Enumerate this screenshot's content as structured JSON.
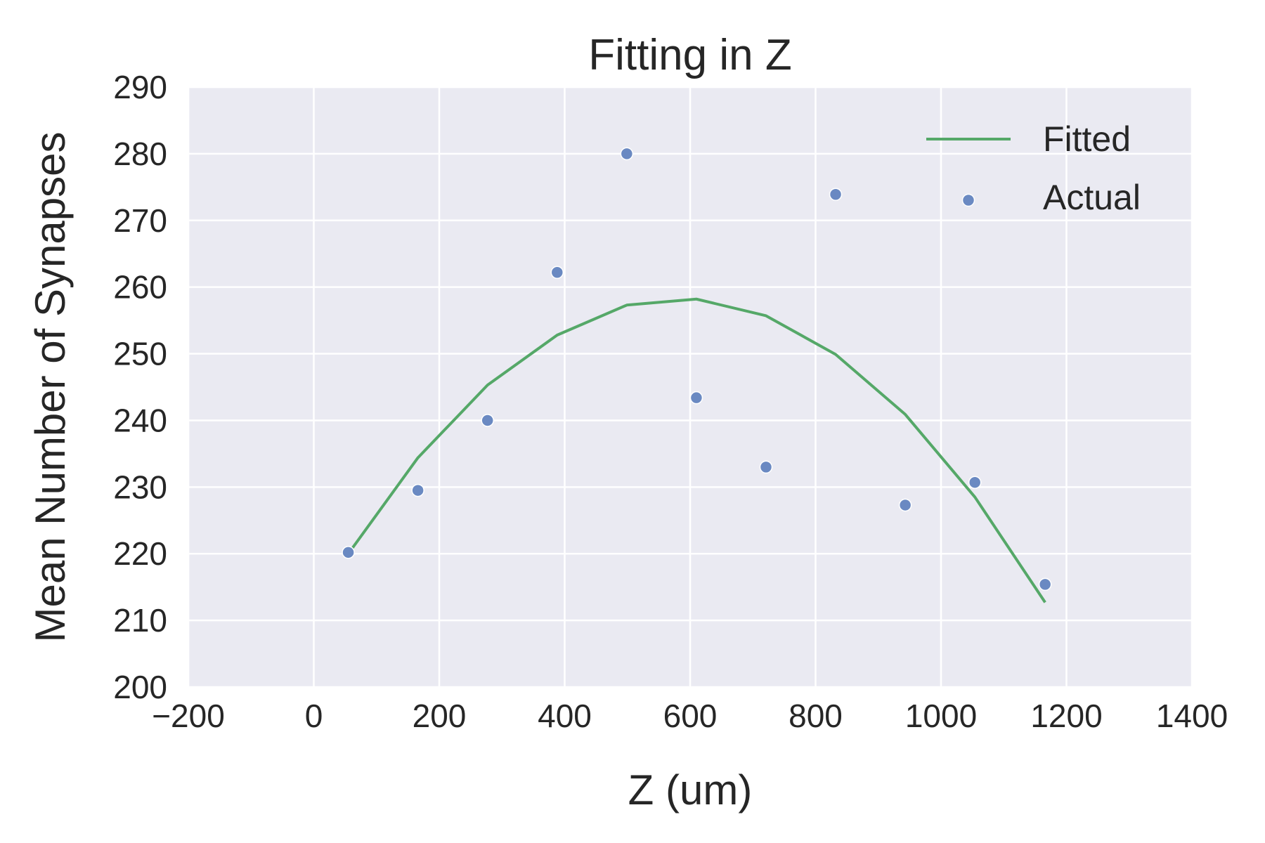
{
  "chart_data": {
    "type": "scatter",
    "title": "Fitting in Z",
    "xlabel": "Z (um)",
    "ylabel": "Mean Number of Synapses",
    "xlim": [
      -200,
      1400
    ],
    "ylim": [
      200,
      290
    ],
    "xticks": [
      -200,
      0,
      200,
      400,
      600,
      800,
      1000,
      1200,
      1400
    ],
    "xtick_labels": [
      "−200",
      "0",
      "200",
      "400",
      "600",
      "800",
      "1000",
      "1200",
      "1400"
    ],
    "yticks": [
      200,
      210,
      220,
      230,
      240,
      250,
      260,
      270,
      280,
      290
    ],
    "ytick_labels": [
      "200",
      "210",
      "220",
      "230",
      "240",
      "250",
      "260",
      "270",
      "280",
      "290"
    ],
    "grid": true,
    "legend_position": "top-right",
    "background_color": "#EAEAF2",
    "series": [
      {
        "name": "Fitted",
        "kind": "line",
        "color": "#55A868",
        "x": [
          55,
          166,
          277,
          388,
          499,
          610,
          721,
          832,
          943,
          1054,
          1166
        ],
        "y": [
          220.0,
          234.4,
          245.3,
          252.8,
          257.3,
          258.2,
          255.7,
          249.9,
          240.9,
          228.5,
          212.7
        ]
      },
      {
        "name": "Actual",
        "kind": "scatter",
        "color": "#6A89C2",
        "x": [
          55,
          166,
          277,
          388,
          499,
          610,
          721,
          832,
          943,
          1054,
          1166
        ],
        "y": [
          220.2,
          229.5,
          240.0,
          262.2,
          280.0,
          243.4,
          233.0,
          273.9,
          227.3,
          230.7,
          215.4
        ]
      }
    ]
  }
}
